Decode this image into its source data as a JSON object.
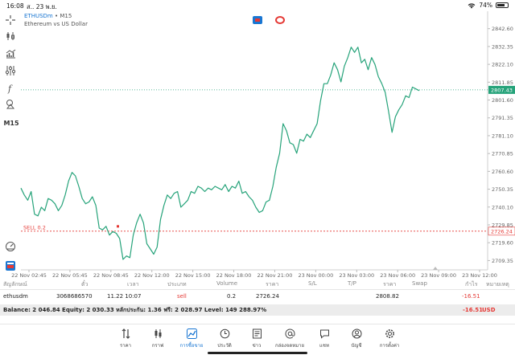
{
  "status_bar": {
    "time": "16:08",
    "date": "ส.. 23 พ.ย.",
    "battery": "74%",
    "battery_level": 0.74
  },
  "chart": {
    "symbol": "ETHUSDm",
    "separator": "•",
    "timeframe": "M15",
    "description": "Ethereum vs US Dollar",
    "timeframe_toolbar_label": "M15",
    "current_price_label": "2807.43",
    "sell_line_label": "SELL 0.2",
    "sell_price_label": "2726.24",
    "colors": {
      "line": "#26a37a",
      "sell": "#e53935",
      "current": "#26a37a",
      "grid": "#e8e8e8"
    }
  },
  "chart_data": {
    "type": "line",
    "y_ticks": [
      "2842.60",
      "2832.35",
      "2822.10",
      "2811.85",
      "2801.60",
      "2791.35",
      "2781.10",
      "2770.85",
      "2760.60",
      "2750.35",
      "2740.10",
      "2729.85",
      "2719.60",
      "2709.35"
    ],
    "x_ticks": [
      "22 Nov 02:45",
      "22 Nov 05:45",
      "22 Nov 08:45",
      "22 Nov 12:00",
      "22 Nov 15:00",
      "22 Nov 18:00",
      "22 Nov 21:00",
      "23 Nov 00:00",
      "23 Nov 03:00",
      "23 Nov 06:00",
      "23 Nov 09:00",
      "23 Nov 12:00"
    ],
    "ylim": [
      2704,
      2848
    ],
    "values": [
      2751,
      2747,
      2744,
      2749,
      2736,
      2735,
      2740,
      2738,
      2745,
      2744,
      2742,
      2738,
      2741,
      2747,
      2755,
      2760,
      2758,
      2752,
      2745,
      2742,
      2743,
      2746,
      2741,
      2728,
      2727,
      2729,
      2724,
      2726,
      2725,
      2722,
      2710,
      2712,
      2711,
      2724,
      2731,
      2736,
      2731,
      2719,
      2716,
      2713,
      2717,
      2733,
      2741,
      2747,
      2745,
      2748,
      2749,
      2740,
      2742,
      2744,
      2749,
      2748,
      2752,
      2751,
      2749,
      2751,
      2750,
      2752,
      2751,
      2750,
      2753,
      2749,
      2752,
      2751,
      2755,
      2748,
      2749,
      2746,
      2744,
      2740,
      2737,
      2738,
      2743,
      2744,
      2752,
      2763,
      2771,
      2788,
      2784,
      2777,
      2776,
      2771,
      2779,
      2778,
      2782,
      2780,
      2784,
      2788,
      2801,
      2811,
      2811,
      2816,
      2823,
      2819,
      2812,
      2821,
      2826,
      2832,
      2829,
      2832,
      2823,
      2825,
      2819,
      2826,
      2822,
      2815,
      2811,
      2806,
      2795,
      2783,
      2792,
      2796,
      2799,
      2804,
      2803,
      2809,
      2808,
      2807
    ],
    "current_price": 2807.43,
    "sell_price": 2726.24
  },
  "positions": {
    "headers": [
      "สัญลักษณ์",
      "ตั๋ว",
      "เวลา",
      "ประเภท",
      "Volume",
      "ราคา",
      "S/L",
      "T/P",
      "ราคา",
      "Swap",
      "กำไร",
      "หมายเหตุ"
    ],
    "rows": [
      {
        "symbol": "ethusdm",
        "ticket": "3068686570",
        "time": "11.22 10:07",
        "type": "sell",
        "volume": "0.2",
        "price": "2726.24",
        "sl": "",
        "tp": "",
        "current": "2808.82",
        "swap": "",
        "profit": "-16.51"
      }
    ]
  },
  "balance_bar": {
    "text": "Balance: 2 046.84 Equity: 2 030.33 หลักประกัน: 1.36 ฟรี: 2 028.97 Level: 149 288.97%",
    "total": "-16.51",
    "currency": "USD"
  },
  "bottom_nav": {
    "items": [
      {
        "label": "ราคา",
        "icon": "quotes-icon"
      },
      {
        "label": "กราฟ",
        "icon": "chart-icon"
      },
      {
        "label": "การซื้อขาย",
        "icon": "trade-icon",
        "active": true
      },
      {
        "label": "ประวัติ",
        "icon": "history-icon"
      },
      {
        "label": "ข่าว",
        "icon": "news-icon"
      },
      {
        "label": "กล่องจดหมาย",
        "icon": "mailbox-icon"
      },
      {
        "label": "แชท",
        "icon": "chat-icon"
      },
      {
        "label": "บัญชี",
        "icon": "account-icon"
      },
      {
        "label": "การตั้งค่า",
        "icon": "settings-icon"
      }
    ]
  }
}
